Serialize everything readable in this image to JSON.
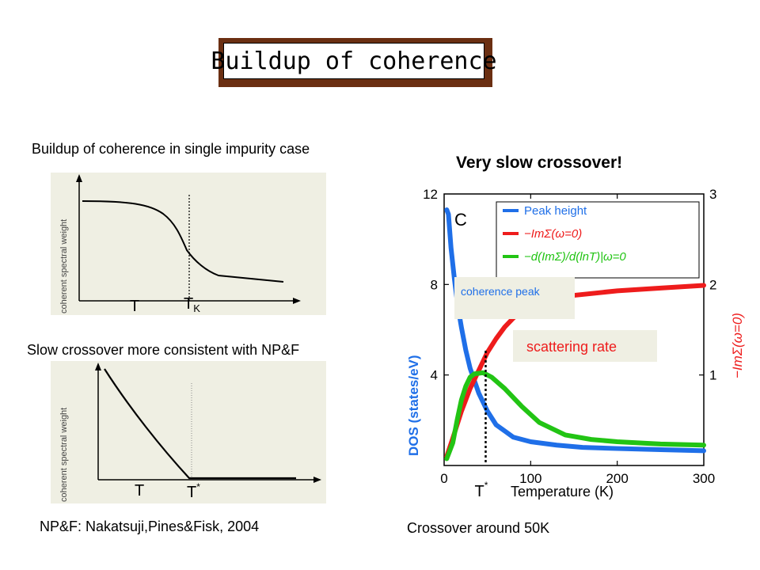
{
  "title": "Buildup of coherence",
  "left_top": {
    "heading": "Buildup of coherence in single impurity case",
    "ylabel": "coherent spectral weight",
    "label_t": "T",
    "label_tk_main": "T",
    "label_tk_sub": "K"
  },
  "left_bottom": {
    "heading": "Slow crossover more consistent with NP&F",
    "ylabel": "coherent spectral weight",
    "label_t": "T",
    "label_tstar_main": "T",
    "label_tstar_sup": "*"
  },
  "citation": "NP&F: Nakatsuji,Pines&Fisk, 2004",
  "right": {
    "heading": "Very slow crossover!",
    "footer": "Crossover around 50K",
    "panel_letter": "C",
    "coherence_peak_label": "coherence peak",
    "scattering_rate_label": "scattering rate",
    "tstar_main": "T",
    "tstar_sup": "*",
    "colors": {
      "blue": "#1f6fe8",
      "red": "#ee1c1c",
      "green": "#22c414",
      "box": "#efefe3"
    }
  },
  "chart_data": {
    "type": "line",
    "xlabel": "Temperature (K)",
    "ylabel": "DOS (states/eV)",
    "ylabel_right": "−ImΣ(ω=0)",
    "xlim": [
      0,
      300
    ],
    "ylim": [
      0,
      12
    ],
    "ylim_right": [
      0,
      3
    ],
    "xticks": [
      "0",
      "100",
      "200",
      "300"
    ],
    "yticks": [
      "4",
      "8",
      "12"
    ],
    "yticks_right": [
      "1",
      "2",
      "3"
    ],
    "legend_position": "top-right",
    "series": [
      {
        "name": "Peak height",
        "x": [
          3,
          5,
          8,
          12,
          16,
          20,
          25,
          30,
          40,
          50,
          60,
          80,
          100,
          130,
          160,
          200,
          250,
          300
        ],
        "y": [
          11.3,
          11.1,
          9.6,
          8.2,
          7.0,
          6.1,
          5.1,
          4.3,
          3.2,
          2.4,
          1.8,
          1.25,
          1.05,
          0.9,
          0.8,
          0.75,
          0.7,
          0.65
        ]
      },
      {
        "name": "−ImΣ(ω=0)",
        "x": [
          3,
          10,
          20,
          30,
          40,
          50,
          60,
          70,
          80,
          90,
          100,
          120,
          150,
          200,
          250,
          300
        ],
        "y": [
          0.1,
          0.3,
          0.6,
          0.85,
          1.05,
          1.25,
          1.4,
          1.53,
          1.63,
          1.71,
          1.76,
          1.82,
          1.88,
          1.93,
          1.96,
          1.99
        ]
      },
      {
        "name": "−d(ImΣ)/d(lnT)|ω=0",
        "x": [
          3,
          10,
          15,
          20,
          25,
          30,
          35,
          45,
          55,
          70,
          90,
          110,
          140,
          170,
          200,
          250,
          300
        ],
        "y": [
          0.3,
          1.0,
          2.0,
          2.9,
          3.5,
          3.9,
          4.05,
          4.1,
          3.9,
          3.4,
          2.6,
          1.9,
          1.35,
          1.15,
          1.05,
          0.95,
          0.9
        ]
      }
    ]
  }
}
